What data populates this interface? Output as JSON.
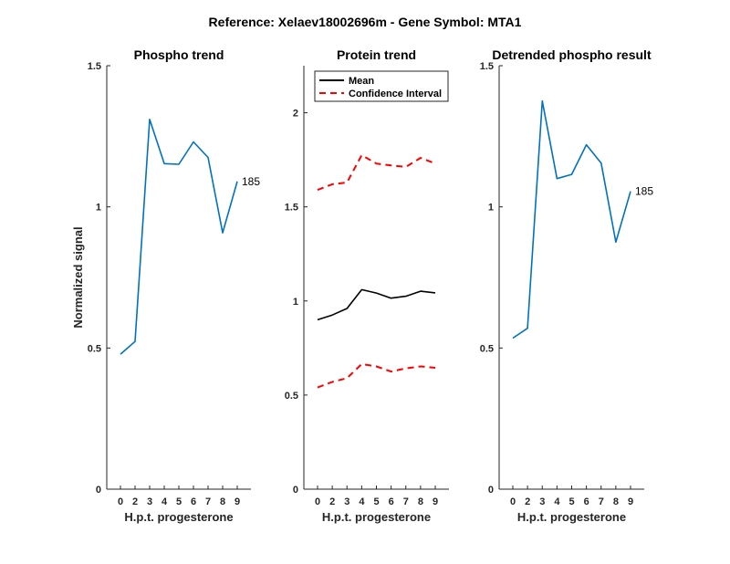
{
  "figure": {
    "suptitle": "Reference:  Xelaev18002696m - Gene Symbol:  MTA1"
  },
  "chart_data": [
    {
      "type": "line",
      "title": "Phospho trend",
      "xlabel": "H.p.t. progesterone",
      "ylabel": "Normalized signal",
      "categories": [
        "0",
        "2",
        "3",
        "4",
        "5",
        "6",
        "7",
        "8",
        "9"
      ],
      "ylim": [
        0,
        1.5
      ],
      "yticks": [
        "0",
        "0.5",
        "1",
        "1.5"
      ],
      "series": [
        {
          "values": [
            0.478,
            0.523,
            1.31,
            1.153,
            1.151,
            1.23,
            1.175,
            0.908,
            1.09
          ],
          "color": "#0072bd",
          "dash": "solid"
        }
      ],
      "annotation": "185"
    },
    {
      "type": "line",
      "title": "Protein trend",
      "xlabel": "H.p.t. progesterone",
      "ylabel": "",
      "categories": [
        "0",
        "2",
        "3",
        "4",
        "5",
        "6",
        "7",
        "8",
        "9"
      ],
      "ylim": [
        0,
        2.25
      ],
      "yticks": [
        "0",
        "0.5",
        "1",
        "1.5",
        "2"
      ],
      "legend": {
        "position": "top-left"
      },
      "series": [
        {
          "name": "Mean",
          "values": [
            0.9,
            0.925,
            0.96,
            1.06,
            1.042,
            1.015,
            1.025,
            1.052,
            1.043
          ],
          "color": "#000000",
          "dash": "solid"
        },
        {
          "name": "Confidence Interval",
          "values": [
            1.59,
            1.62,
            1.63,
            1.775,
            1.73,
            1.72,
            1.712,
            1.76,
            1.73
          ],
          "color": "#ff0000",
          "dash": "dashed"
        },
        {
          "name": "",
          "values": [
            0.54,
            0.57,
            0.59,
            0.665,
            0.652,
            0.625,
            0.642,
            0.652,
            0.645
          ],
          "color": "#ff0000",
          "dash": "dashed"
        }
      ]
    },
    {
      "type": "line",
      "title": "Detrended phospho result",
      "xlabel": "H.p.t. progesterone",
      "ylabel": "",
      "categories": [
        "0",
        "2",
        "3",
        "4",
        "5",
        "6",
        "7",
        "8",
        "9"
      ],
      "ylim": [
        0,
        1.5
      ],
      "yticks": [
        "0",
        "0.5",
        "1",
        "1.5"
      ],
      "series": [
        {
          "values": [
            0.535,
            0.57,
            1.375,
            1.1,
            1.115,
            1.22,
            1.155,
            0.875,
            1.055
          ],
          "color": "#0072bd",
          "dash": "solid"
        }
      ],
      "annotation": "185"
    }
  ]
}
